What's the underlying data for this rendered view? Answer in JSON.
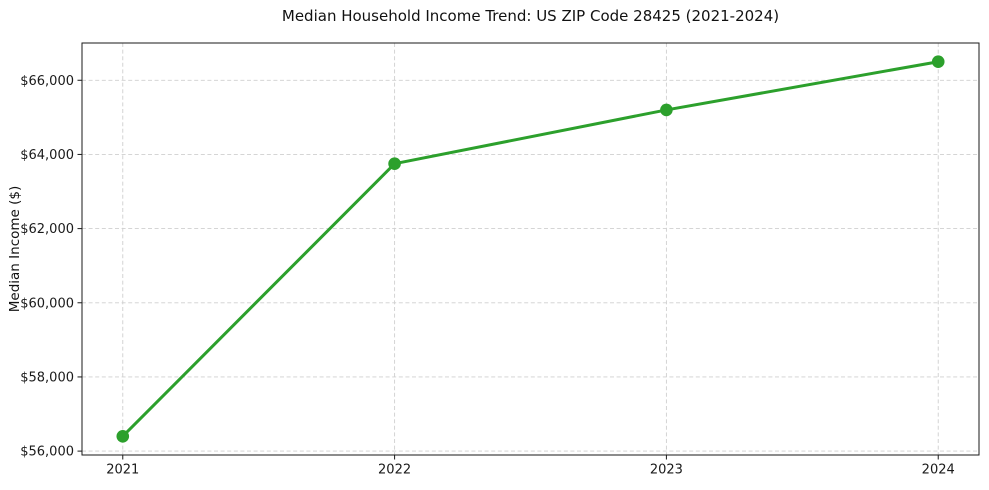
{
  "chart_data": {
    "type": "line",
    "title": "Median Household Income Trend: US ZIP Code 28425 (2021-2024)",
    "xlabel": "",
    "ylabel": "Median Income ($)",
    "x": [
      2021,
      2022,
      2023,
      2024
    ],
    "y": [
      56400,
      63750,
      65200,
      66500
    ],
    "xlim": [
      2020.85,
      2024.15
    ],
    "ylim": [
      55895,
      67005
    ],
    "x_ticks": {
      "values": [
        2021,
        2022,
        2023,
        2024
      ],
      "labels": [
        "2021",
        "2022",
        "2023",
        "2024"
      ]
    },
    "y_ticks": {
      "values": [
        56000,
        58000,
        60000,
        62000,
        64000,
        66000
      ],
      "labels": [
        "$56,000",
        "$58,000",
        "$60,000",
        "$62,000",
        "$64,000",
        "$66,000"
      ]
    },
    "grid": true,
    "grid_line_style": "dashed",
    "legend": "none",
    "marker": "circle",
    "colors": {
      "line": "#2ca02c",
      "marker": "#2ca02c",
      "grid": "#cfcfcf",
      "axis": "#1a1a1a",
      "text": "#1a1a1a",
      "background": "#ffffff"
    }
  }
}
